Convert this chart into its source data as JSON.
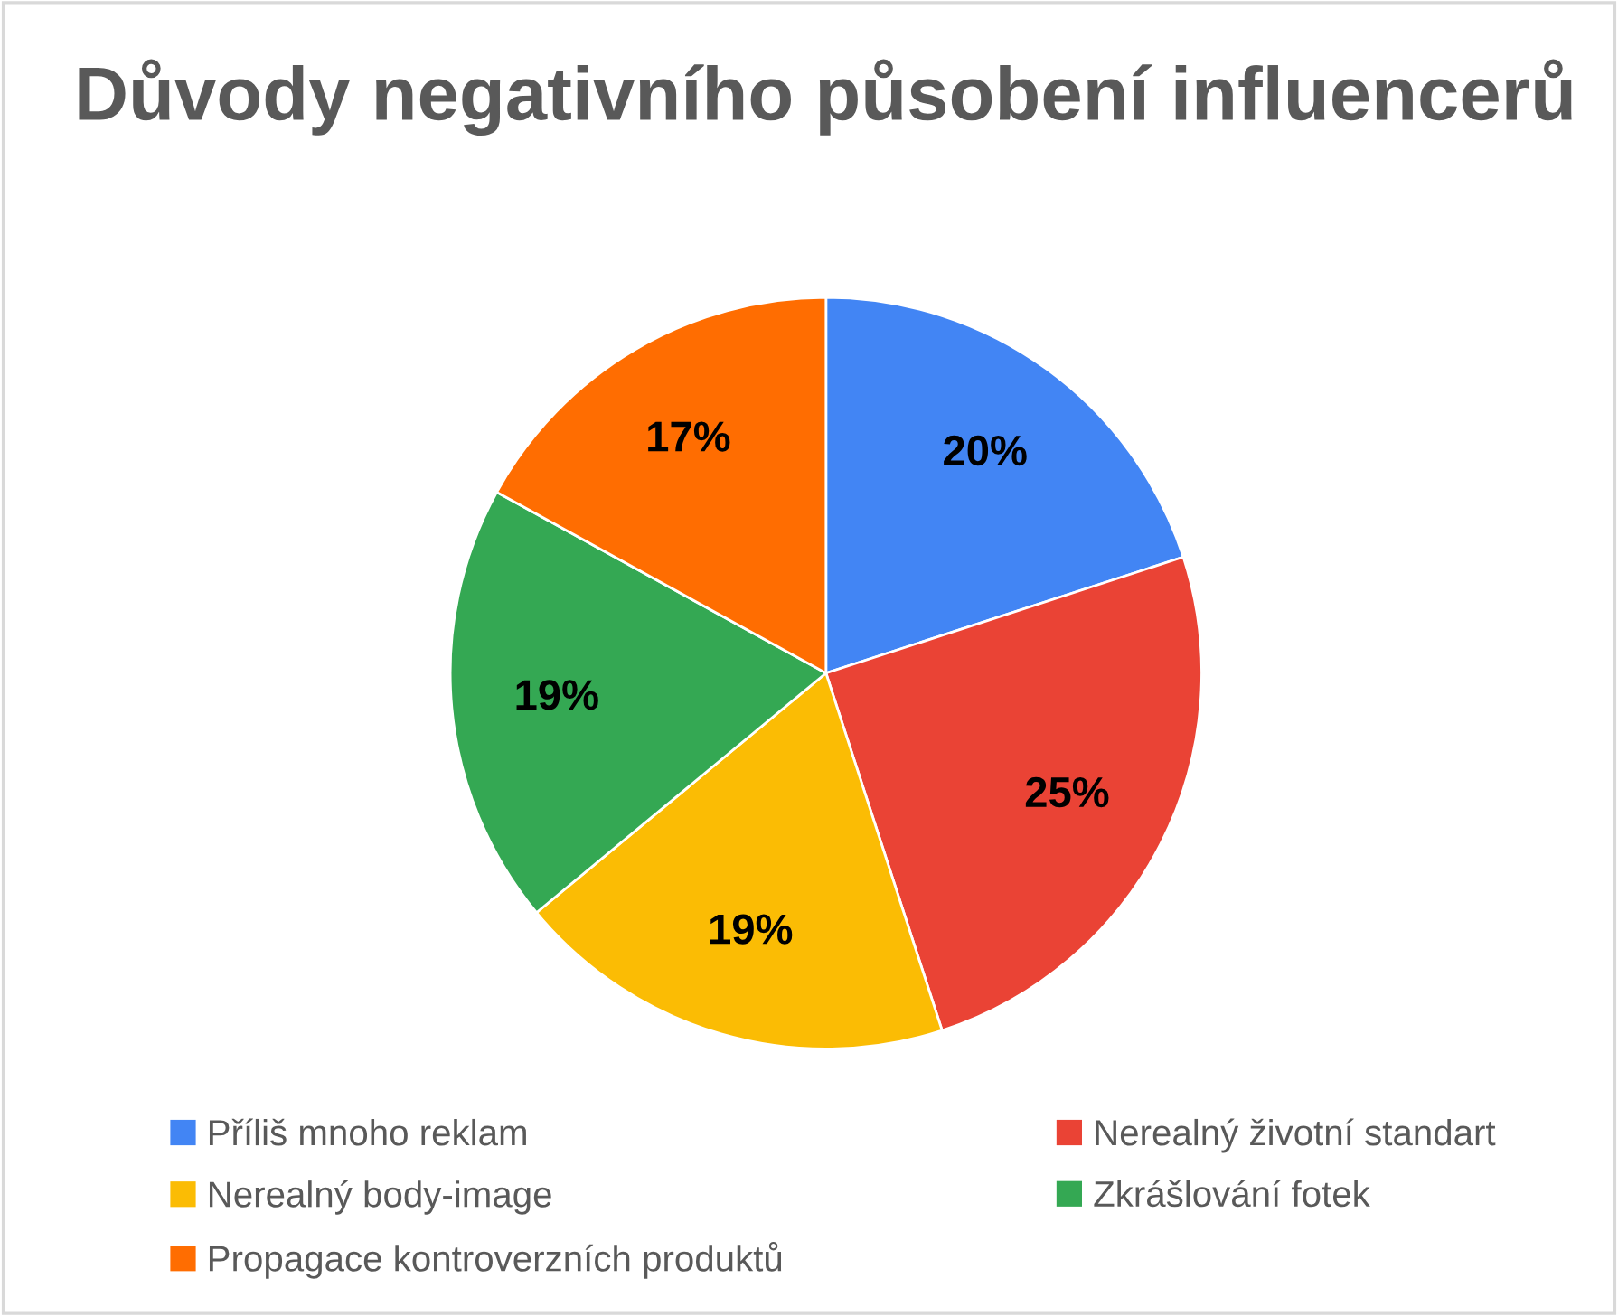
{
  "chart_data": {
    "type": "pie",
    "title": "Důvody negativního působení influencerů",
    "categories": [
      "Příliš mnoho reklam",
      "Nerealný životní standart",
      "Nerealný body-image",
      "Zkrášlování fotek",
      "Propagace kontroverzních produktů"
    ],
    "values": [
      20,
      25,
      19,
      19,
      17
    ],
    "colors": [
      "#4285f4",
      "#ea4335",
      "#fbbc04",
      "#34a853",
      "#ff6d01"
    ],
    "value_labels": [
      "20%",
      "25%",
      "19%",
      "19%",
      "17%"
    ],
    "legend": "bottom"
  }
}
